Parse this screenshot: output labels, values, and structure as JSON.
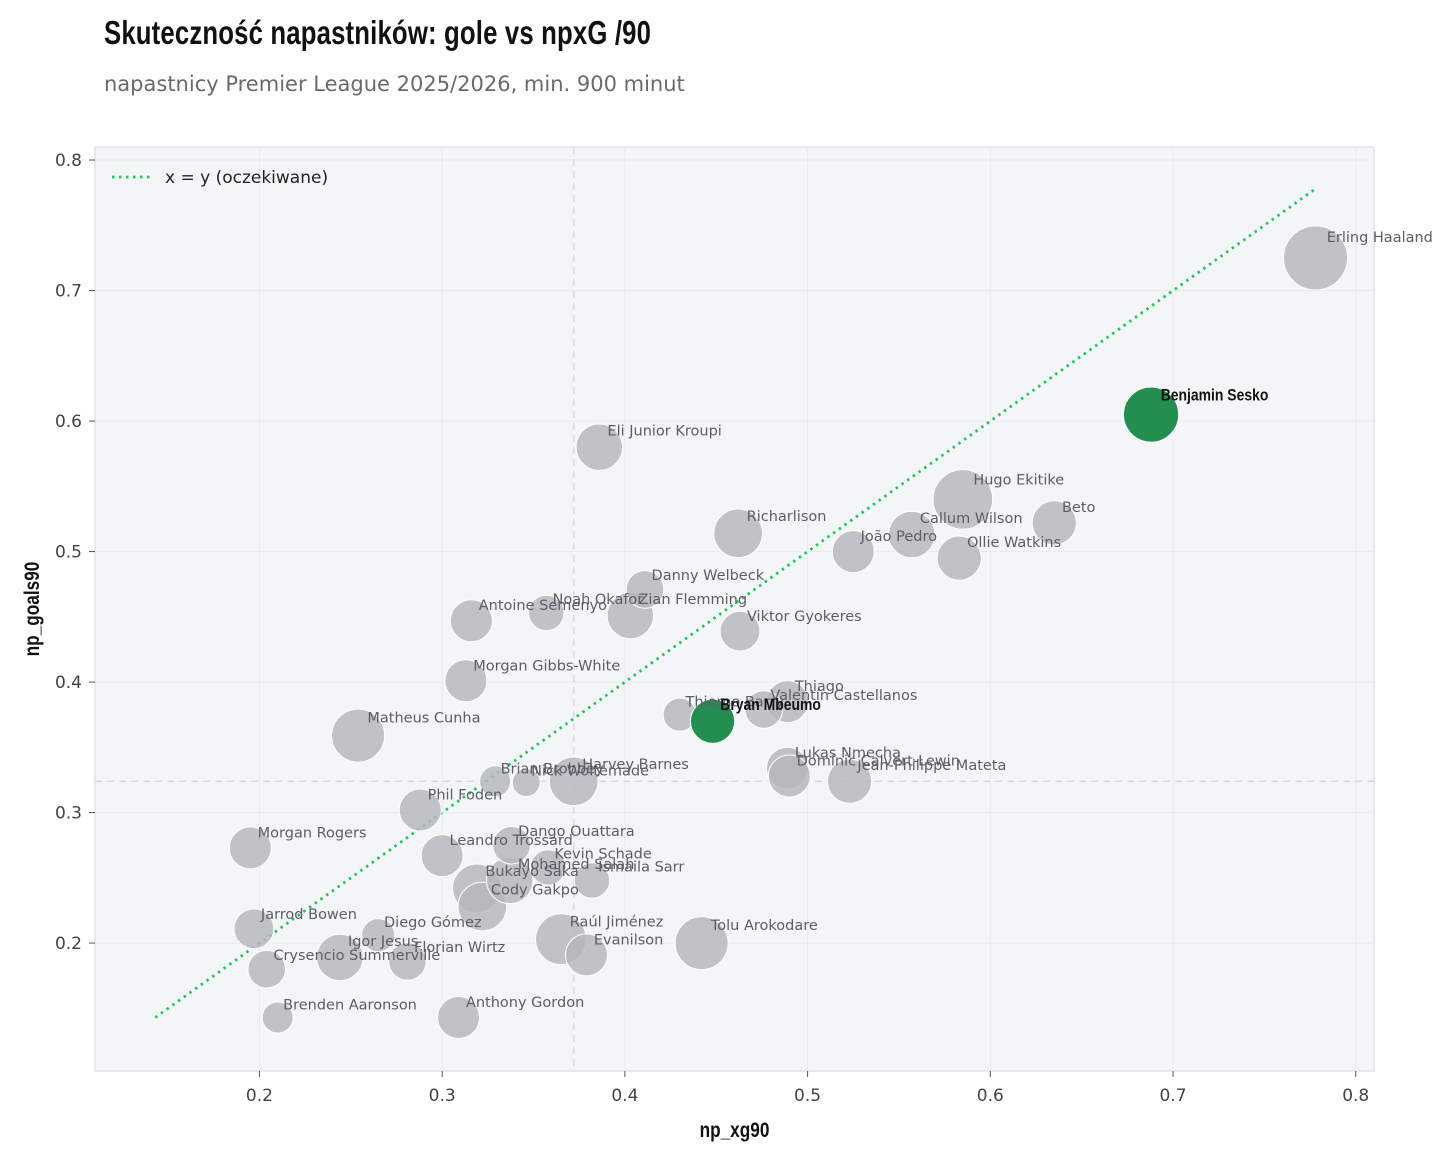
{
  "chart_data": {
    "type": "scatter",
    "title": "Skuteczność napastników: gole vs npxG /90",
    "subtitle": "napastnicy Premier League 2025/2026, min. 900 minut",
    "xlabel": "np_xg90",
    "ylabel": "np_goals90",
    "xlim": [
      0.11,
      0.81
    ],
    "ylim": [
      0.102,
      0.81
    ],
    "xticks": [
      "0.2",
      "0.3",
      "0.4",
      "0.5",
      "0.6",
      "0.7",
      "0.8"
    ],
    "yticks": [
      "0.2",
      "0.3",
      "0.4",
      "0.5",
      "0.6",
      "0.7",
      "0.8"
    ],
    "grid": true,
    "mean_x": 0.372,
    "mean_y": 0.324,
    "reference_line": {
      "label": "x = y (oczekiwane)",
      "from": 0.143,
      "to": 0.778,
      "color": "#22c55e"
    },
    "legend_position": "top-left",
    "colors": {
      "default": "#b4b7bd",
      "highlight": "#1d8a4a",
      "background": "#f4f5f7"
    },
    "points": [
      {
        "name": "Erling Haaland",
        "x": 0.778,
        "y": 0.725,
        "size": 1.0
      },
      {
        "name": "Benjamin Sesko",
        "x": 0.688,
        "y": 0.605,
        "size": 0.8,
        "highlight": true
      },
      {
        "name": "Eli Junior Kroupi",
        "x": 0.386,
        "y": 0.58,
        "size": 0.6
      },
      {
        "name": "Hugo Ekitike",
        "x": 0.585,
        "y": 0.54,
        "size": 0.9
      },
      {
        "name": "Beto",
        "x": 0.635,
        "y": 0.522,
        "size": 0.55
      },
      {
        "name": "Richarlison",
        "x": 0.462,
        "y": 0.514,
        "size": 0.65
      },
      {
        "name": "Callum Wilson",
        "x": 0.557,
        "y": 0.513,
        "size": 0.6
      },
      {
        "name": "João Pedro",
        "x": 0.525,
        "y": 0.5,
        "size": 0.5
      },
      {
        "name": "Ollie Watkins",
        "x": 0.583,
        "y": 0.495,
        "size": 0.55
      },
      {
        "name": "Danny Welbeck",
        "x": 0.411,
        "y": 0.471,
        "size": 0.4
      },
      {
        "name": "Noah Okafor",
        "x": 0.357,
        "y": 0.453,
        "size": 0.35
      },
      {
        "name": "Zian Flemming",
        "x": 0.403,
        "y": 0.451,
        "size": 0.6
      },
      {
        "name": "Antoine Semenyo",
        "x": 0.316,
        "y": 0.447,
        "size": 0.5
      },
      {
        "name": "Viktor Gyokeres",
        "x": 0.463,
        "y": 0.439,
        "size": 0.45
      },
      {
        "name": "Morgan Gibbs-White",
        "x": 0.313,
        "y": 0.401,
        "size": 0.5
      },
      {
        "name": "Thiago",
        "x": 0.489,
        "y": 0.385,
        "size": 0.5
      },
      {
        "name": "Valentín Castellanos",
        "x": 0.476,
        "y": 0.379,
        "size": 0.4
      },
      {
        "name": "Thierno Barry",
        "x": 0.43,
        "y": 0.375,
        "size": 0.3
      },
      {
        "name": "Bryan Mbeumo",
        "x": 0.448,
        "y": 0.37,
        "size": 0.55,
        "highlight": true
      },
      {
        "name": "Matheus Cunha",
        "x": 0.254,
        "y": 0.359,
        "size": 0.75
      },
      {
        "name": "Lukas Nmecha",
        "x": 0.489,
        "y": 0.334,
        "size": 0.5
      },
      {
        "name": "Dominic Calvert-Lewin",
        "x": 0.49,
        "y": 0.328,
        "size": 0.5
      },
      {
        "name": "Jean-Philippe Mateta",
        "x": 0.523,
        "y": 0.324,
        "size": 0.55
      },
      {
        "name": "Brian Brobbey",
        "x": 0.329,
        "y": 0.324,
        "size": 0.25
      },
      {
        "name": "Nick Woltemade",
        "x": 0.346,
        "y": 0.323,
        "size": 0.18
      },
      {
        "name": "Harvey Barnes",
        "x": 0.372,
        "y": 0.324,
        "size": 0.65
      },
      {
        "name": "Phil Foden",
        "x": 0.288,
        "y": 0.302,
        "size": 0.5
      },
      {
        "name": "Morgan Rogers",
        "x": 0.195,
        "y": 0.273,
        "size": 0.5
      },
      {
        "name": "Dango Ouattara",
        "x": 0.338,
        "y": 0.275,
        "size": 0.4
      },
      {
        "name": "Leandro Trossard",
        "x": 0.3,
        "y": 0.267,
        "size": 0.5
      },
      {
        "name": "Kevin Schade",
        "x": 0.358,
        "y": 0.258,
        "size": 0.35
      },
      {
        "name": "Mohamed Salah",
        "x": 0.337,
        "y": 0.248,
        "size": 0.6
      },
      {
        "name": "Ismaila Sarr",
        "x": 0.382,
        "y": 0.248,
        "size": 0.35
      },
      {
        "name": "Bukayo Saka",
        "x": 0.319,
        "y": 0.242,
        "size": 0.65
      },
      {
        "name": "Cody Gakpo",
        "x": 0.322,
        "y": 0.228,
        "size": 0.65
      },
      {
        "name": "Jarrod Bowen",
        "x": 0.197,
        "y": 0.211,
        "size": 0.45
      },
      {
        "name": "Diego Gómez",
        "x": 0.265,
        "y": 0.206,
        "size": 0.3
      },
      {
        "name": "Raúl Jiménez",
        "x": 0.365,
        "y": 0.203,
        "size": 0.7
      },
      {
        "name": "Tolu Arokodare",
        "x": 0.442,
        "y": 0.2,
        "size": 0.75
      },
      {
        "name": "Evanilson",
        "x": 0.379,
        "y": 0.191,
        "size": 0.5
      },
      {
        "name": "Igor Jesus",
        "x": 0.244,
        "y": 0.189,
        "size": 0.6
      },
      {
        "name": "Florian Wirtz",
        "x": 0.281,
        "y": 0.186,
        "size": 0.4
      },
      {
        "name": "Crysencio Summerville",
        "x": 0.204,
        "y": 0.18,
        "size": 0.4
      },
      {
        "name": "Brenden Aaronson",
        "x": 0.21,
        "y": 0.143,
        "size": 0.25
      },
      {
        "name": "Anthony Gordon",
        "x": 0.309,
        "y": 0.143,
        "size": 0.5
      }
    ]
  }
}
